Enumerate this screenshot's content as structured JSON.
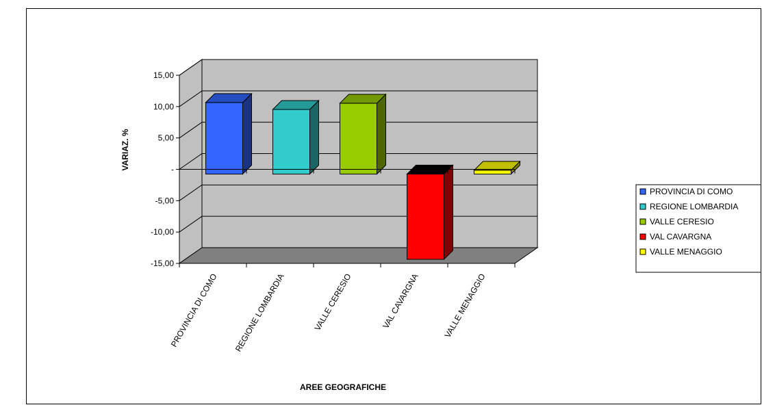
{
  "chart_data": {
    "type": "bar",
    "style": "3d-column",
    "categories": [
      "PROVINCIA DI COMO",
      "REGIONE LOMBARDIA",
      "VALLE CERESIO",
      "VAL CAVARGNA",
      "VALLE MENAGGIO"
    ],
    "values": [
      11.4,
      10.3,
      11.3,
      -13.6,
      0.6
    ],
    "colors": [
      "#3366ff",
      "#33cccc",
      "#99cc00",
      "#ff0000",
      "#ffff00"
    ],
    "xlabel": "AREE GEOGRAFICHE",
    "ylabel": "VARIAZ. %",
    "ylim": [
      -15,
      15
    ],
    "yticks": [
      15,
      10,
      5,
      0,
      -5,
      -10,
      -15
    ],
    "ytick_labels": [
      "15,00",
      "10,00",
      "5,00",
      "-",
      "-5,00",
      "-10,00",
      "-15,00"
    ],
    "grid": true,
    "wall_color": "#c0c0c0",
    "floor_color": "#808080",
    "legend": {
      "position": "right",
      "entries": [
        "PROVINCIA DI COMO",
        "REGIONE LOMBARDIA",
        "VALLE CERESIO",
        "VAL CAVARGNA",
        "VALLE MENAGGIO"
      ]
    }
  }
}
